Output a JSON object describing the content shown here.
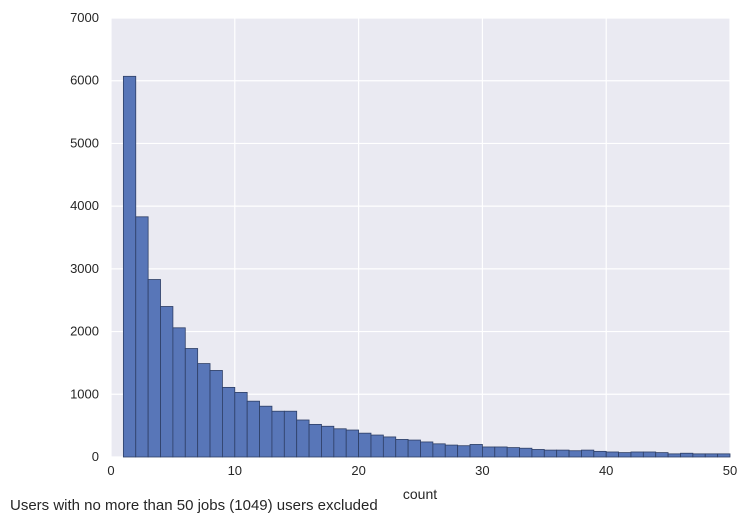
{
  "caption": "Users with no more than 50 jobs (1049) users excluded",
  "colors": {
    "background": "#eaeaf2",
    "grid": "#ffffff",
    "bar_fill": "#5876b8",
    "bar_edge": "#2e3f66",
    "text": "#262626"
  },
  "chart_data": {
    "type": "bar",
    "title": "",
    "xlabel": "count",
    "ylabel": "",
    "xlim": [
      0,
      50
    ],
    "ylim": [
      0,
      7000
    ],
    "xticks": [
      "0",
      "10",
      "20",
      "30",
      "40",
      "50"
    ],
    "yticks": [
      "0",
      "1000",
      "2000",
      "3000",
      "4000",
      "5000",
      "6000",
      "7000"
    ],
    "grid": true,
    "bin_width": 1,
    "bin_starts": [
      1,
      2,
      3,
      4,
      5,
      6,
      7,
      8,
      9,
      10,
      11,
      12,
      13,
      14,
      15,
      16,
      17,
      18,
      19,
      20,
      21,
      22,
      23,
      24,
      25,
      26,
      27,
      28,
      29,
      30,
      31,
      32,
      33,
      34,
      35,
      36,
      37,
      38,
      39,
      40,
      41,
      42,
      43,
      44,
      45,
      46,
      47,
      48,
      49
    ],
    "values": [
      6070,
      3830,
      2830,
      2400,
      2060,
      1730,
      1490,
      1380,
      1110,
      1030,
      890,
      810,
      730,
      730,
      590,
      520,
      490,
      450,
      430,
      380,
      350,
      320,
      280,
      270,
      240,
      210,
      190,
      180,
      200,
      160,
      160,
      150,
      140,
      120,
      110,
      110,
      100,
      110,
      90,
      80,
      70,
      80,
      80,
      70,
      50,
      60,
      50,
      50,
      50
    ]
  }
}
